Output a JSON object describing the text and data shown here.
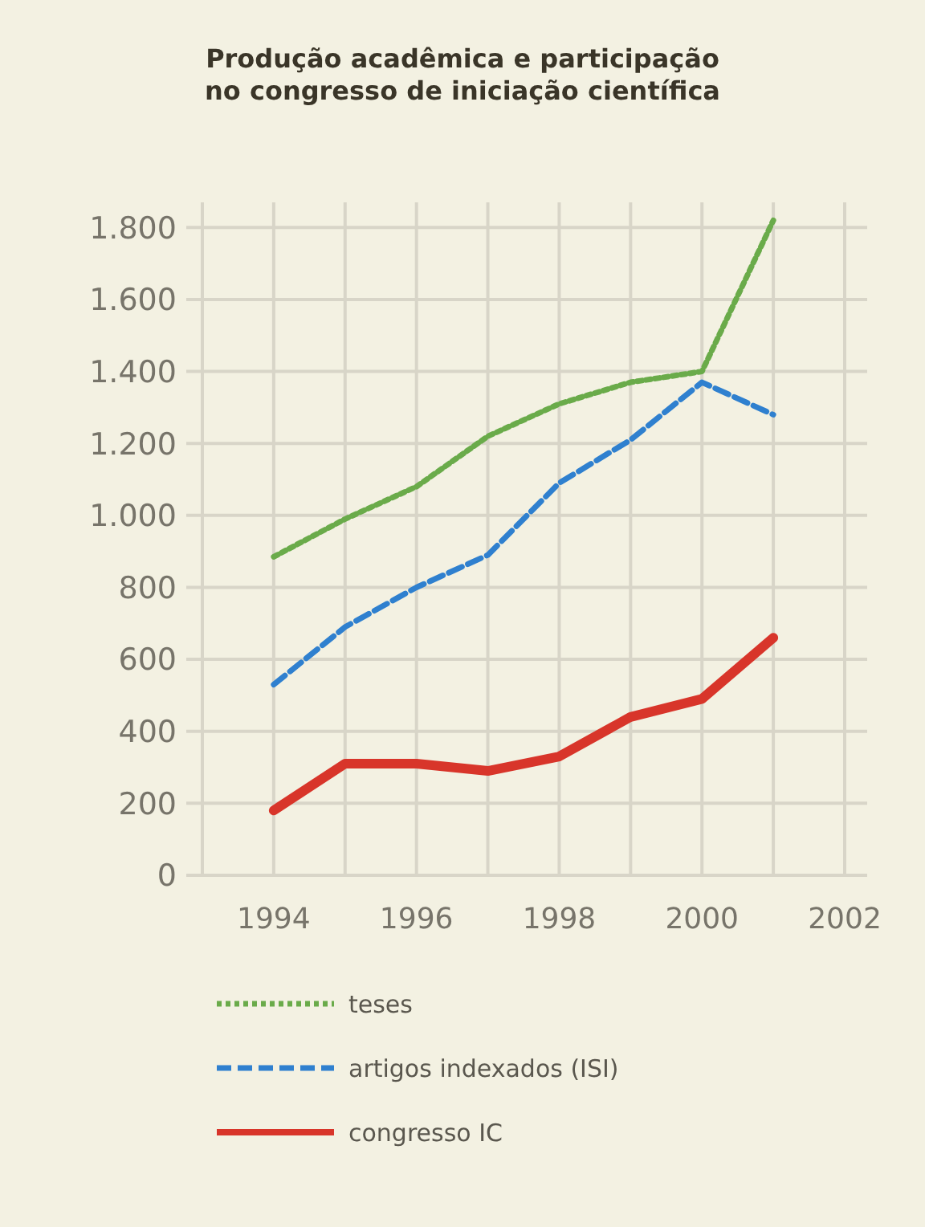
{
  "chart_data": {
    "type": "line",
    "title": "Produção acadêmica e participação no congresso de iniciação científica",
    "x": [
      1994,
      1995,
      1996,
      1997,
      1998,
      1999,
      2000,
      2001
    ],
    "series": [
      {
        "name": "teses",
        "color": "#6aab4a",
        "line_style": "dotted",
        "values": [
          885,
          990,
          1080,
          1220,
          1310,
          1370,
          1400,
          1820
        ]
      },
      {
        "name": "artigos indexados (ISI)",
        "color": "#2f80cf",
        "line_style": "dashed",
        "values": [
          530,
          690,
          800,
          890,
          1090,
          1210,
          1370,
          1280
        ]
      },
      {
        "name": "congresso IC",
        "color": "#d8352a",
        "line_style": "solid",
        "values": [
          180,
          310,
          310,
          290,
          330,
          440,
          490,
          660
        ]
      }
    ],
    "xlim": [
      1993,
      2002
    ],
    "xticks": [
      1994,
      {
        "value": 1995,
        "label": null
      },
      1996,
      {
        "value": 1997,
        "label": null
      },
      1998,
      {
        "value": 1999,
        "label": null
      },
      2000,
      {
        "value": 2001,
        "label": null
      },
      2002
    ],
    "ylim": [
      0,
      1870
    ],
    "yticks": [
      {
        "value": 0,
        "label": "0"
      },
      {
        "value": 200,
        "label": "200"
      },
      {
        "value": 400,
        "label": "400"
      },
      {
        "value": 600,
        "label": "600"
      },
      {
        "value": 800,
        "label": "800"
      },
      {
        "value": 1000,
        "label": "1.000"
      },
      {
        "value": 1200,
        "label": "1.200"
      },
      {
        "value": 1400,
        "label": "1.400"
      },
      {
        "value": 1600,
        "label": "1.600"
      },
      {
        "value": 1800,
        "label": "1.800"
      }
    ],
    "grid": true,
    "legend": "bottom",
    "marker": "none"
  }
}
